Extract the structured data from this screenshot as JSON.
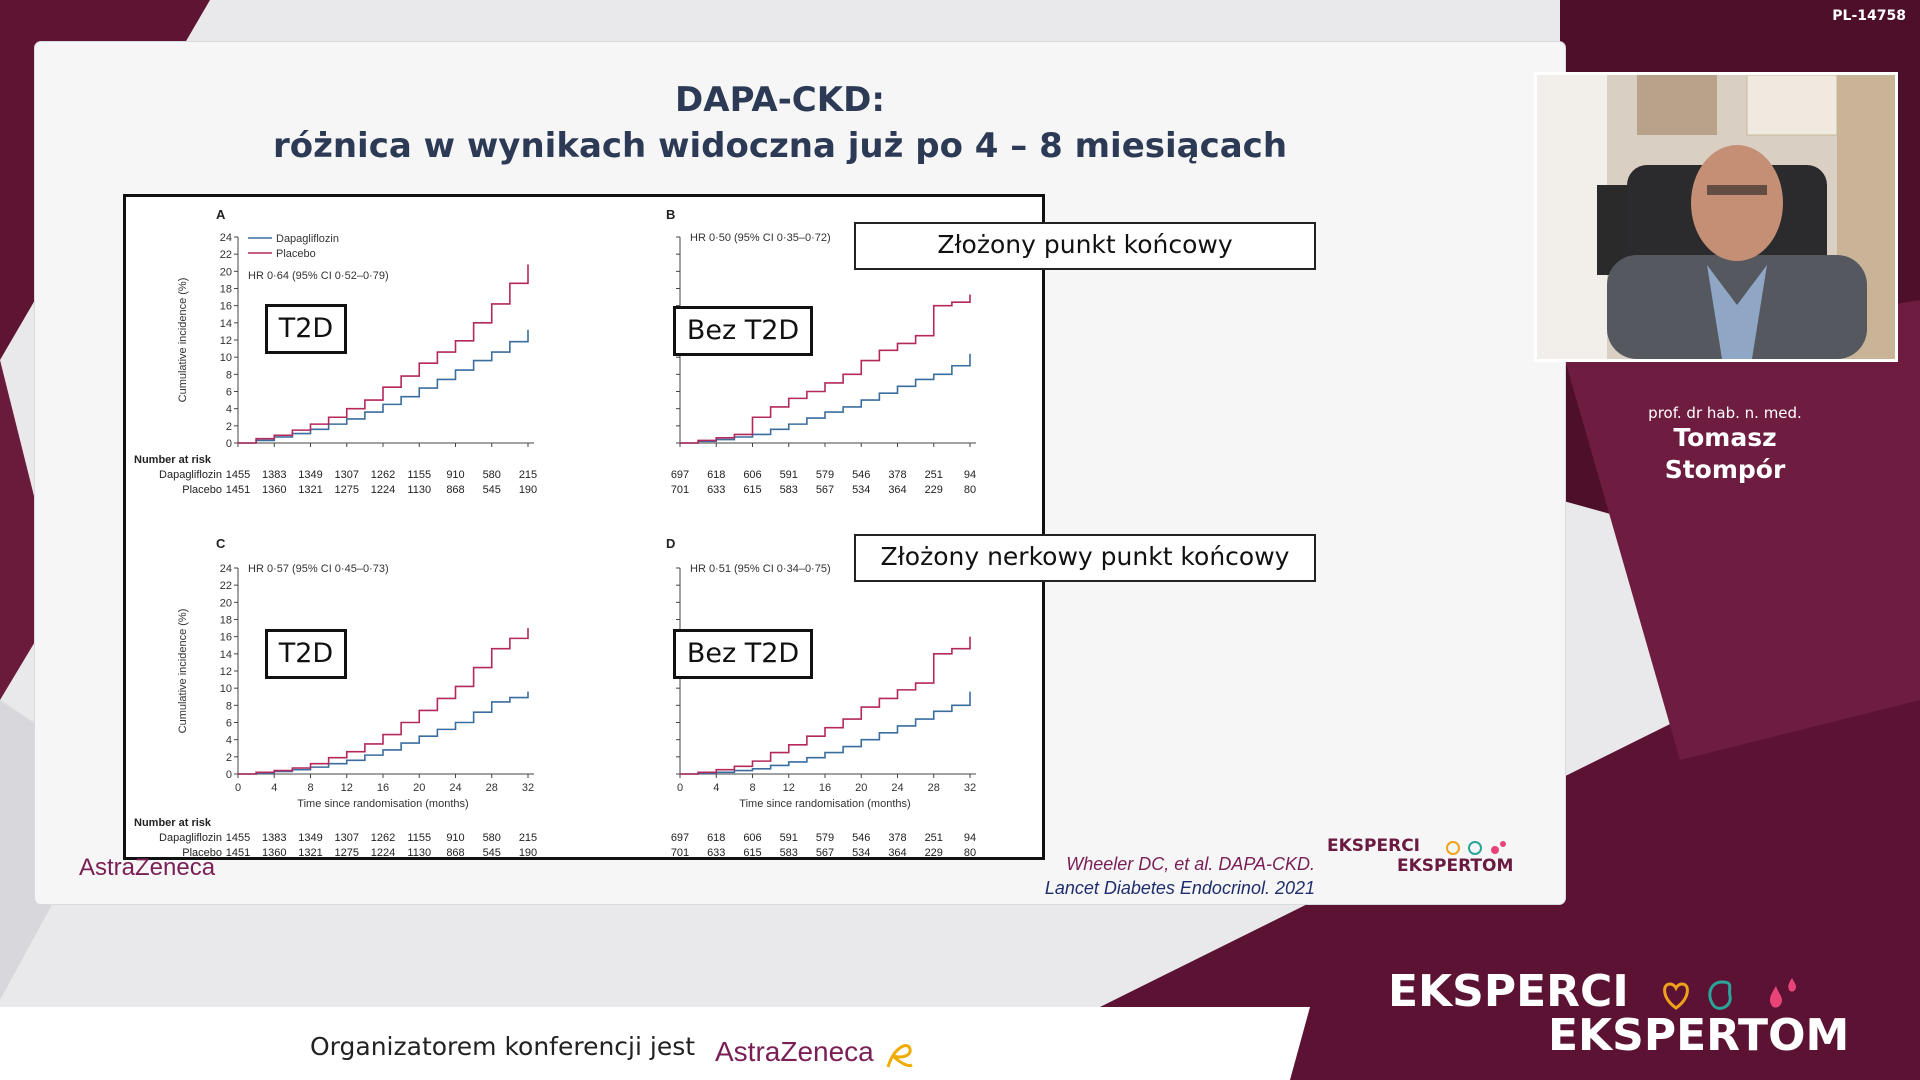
{
  "slide_code": "PL-14758",
  "title_line1": "DAPA-CKD:",
  "title_line2": "różnica w wynikach widoczna już po 4 – 8 miesiącach",
  "callouts": {
    "composite": "Złożony punkt końcowy",
    "renal": "Złożony nerkowy punkt końcowy"
  },
  "box_labels": {
    "a": "T2D",
    "b": "Bez T2D",
    "c": "T2D",
    "d": "Bez T2D"
  },
  "figure": {
    "legend": [
      "Dapagliflozin",
      "Placebo"
    ],
    "ylabel": "Cumulative incidence (%)",
    "xlabel": "Time since randomisation (months)",
    "number_at_risk": "Number at risk",
    "row_labels": [
      "Dapagliflozin",
      "Placebo"
    ],
    "x_ticks": [
      "0",
      "4",
      "8",
      "12",
      "16",
      "20",
      "24",
      "28",
      "32"
    ],
    "y_ticks": [
      "0",
      "2",
      "4",
      "6",
      "8",
      "10",
      "12",
      "14",
      "16",
      "18",
      "20",
      "22",
      "24"
    ],
    "risk_t2d": {
      "dapagliflozin": [
        "1455",
        "1383",
        "1349",
        "1307",
        "1262",
        "1155",
        "910",
        "580",
        "215"
      ],
      "placebo": [
        "1451",
        "1360",
        "1321",
        "1275",
        "1224",
        "1130",
        "868",
        "545",
        "190"
      ]
    },
    "risk_no_t2d": {
      "dapagliflozin": [
        "697",
        "618",
        "606",
        "591",
        "579",
        "546",
        "378",
        "251",
        "94"
      ],
      "placebo": [
        "701",
        "633",
        "615",
        "583",
        "567",
        "534",
        "364",
        "229",
        "80"
      ]
    },
    "panels": [
      {
        "letter": "A",
        "hr": "HR 0·64 (95% CI 0·52–0·79)"
      },
      {
        "letter": "B",
        "hr": "HR 0·50 (95% CI 0·35–0·72)"
      },
      {
        "letter": "C",
        "hr": "HR 0·57 (95% CI 0·45–0·73)"
      },
      {
        "letter": "D",
        "hr": "HR 0·51 (95% CI 0·34–0·75)"
      }
    ],
    "ghost_logo": "AstraZeneca"
  },
  "chart_data": [
    {
      "type": "line",
      "panel": "A",
      "ylim": [
        0,
        24
      ],
      "xlim": [
        0,
        32
      ],
      "series": [
        {
          "name": "Dapagliflozin",
          "x": [
            0,
            2,
            4,
            6,
            8,
            10,
            12,
            14,
            16,
            18,
            20,
            22,
            24,
            26,
            28,
            30,
            32
          ],
          "y": [
            0,
            0.3,
            0.7,
            1.1,
            1.6,
            2.2,
            2.8,
            3.6,
            4.5,
            5.4,
            6.4,
            7.4,
            8.5,
            9.6,
            10.6,
            11.8,
            13.2
          ]
        },
        {
          "name": "Placebo",
          "x": [
            0,
            2,
            4,
            6,
            8,
            10,
            12,
            14,
            16,
            18,
            20,
            22,
            24,
            26,
            28,
            30,
            32
          ],
          "y": [
            0,
            0.5,
            0.9,
            1.5,
            2.2,
            3.0,
            4.0,
            5.0,
            6.5,
            7.8,
            9.3,
            10.6,
            11.9,
            14.0,
            16.2,
            18.6,
            20.8
          ]
        }
      ]
    },
    {
      "type": "line",
      "panel": "B",
      "ylim": [
        0,
        24
      ],
      "xlim": [
        0,
        32
      ],
      "series": [
        {
          "name": "Dapagliflozin",
          "x": [
            0,
            2,
            4,
            6,
            8,
            10,
            12,
            14,
            16,
            18,
            20,
            22,
            24,
            26,
            28,
            30,
            32
          ],
          "y": [
            0,
            0.2,
            0.4,
            0.7,
            1.0,
            1.6,
            2.2,
            2.9,
            3.6,
            4.2,
            5.0,
            5.8,
            6.6,
            7.4,
            8.0,
            9.0,
            10.4
          ]
        },
        {
          "name": "Placebo",
          "x": [
            0,
            2,
            4,
            6,
            8,
            10,
            12,
            14,
            16,
            18,
            20,
            22,
            24,
            26,
            28,
            30,
            32
          ],
          "y": [
            0,
            0.3,
            0.6,
            1.0,
            3.0,
            4.2,
            5.2,
            6.0,
            7.0,
            8.0,
            9.6,
            10.8,
            11.6,
            12.5,
            16.0,
            16.4,
            17.3
          ]
        }
      ]
    },
    {
      "type": "line",
      "panel": "C",
      "ylim": [
        0,
        24
      ],
      "xlim": [
        0,
        32
      ],
      "series": [
        {
          "name": "Dapagliflozin",
          "x": [
            0,
            2,
            4,
            6,
            8,
            10,
            12,
            14,
            16,
            18,
            20,
            22,
            24,
            26,
            28,
            30,
            32
          ],
          "y": [
            0,
            0.1,
            0.3,
            0.5,
            0.8,
            1.2,
            1.6,
            2.2,
            2.8,
            3.6,
            4.4,
            5.2,
            6.0,
            7.2,
            8.4,
            8.9,
            9.6
          ]
        },
        {
          "name": "Placebo",
          "x": [
            0,
            2,
            4,
            6,
            8,
            10,
            12,
            14,
            16,
            18,
            20,
            22,
            24,
            26,
            28,
            30,
            32
          ],
          "y": [
            0,
            0.2,
            0.4,
            0.7,
            1.2,
            1.9,
            2.6,
            3.5,
            4.6,
            6.0,
            7.4,
            8.8,
            10.2,
            12.4,
            14.6,
            15.8,
            17.0
          ]
        }
      ]
    },
    {
      "type": "line",
      "panel": "D",
      "ylim": [
        0,
        24
      ],
      "xlim": [
        0,
        32
      ],
      "series": [
        {
          "name": "Dapagliflozin",
          "x": [
            0,
            2,
            4,
            6,
            8,
            10,
            12,
            14,
            16,
            18,
            20,
            22,
            24,
            26,
            28,
            30,
            32
          ],
          "y": [
            0,
            0.1,
            0.2,
            0.4,
            0.6,
            1.0,
            1.4,
            1.9,
            2.5,
            3.2,
            4.0,
            4.8,
            5.6,
            6.4,
            7.3,
            8.0,
            9.6
          ]
        },
        {
          "name": "Placebo",
          "x": [
            0,
            2,
            4,
            6,
            8,
            10,
            12,
            14,
            16,
            18,
            20,
            22,
            24,
            26,
            28,
            30,
            32
          ],
          "y": [
            0,
            0.2,
            0.5,
            0.9,
            1.5,
            2.5,
            3.4,
            4.4,
            5.4,
            6.4,
            7.8,
            8.8,
            9.8,
            10.6,
            14.0,
            14.6,
            16.0
          ]
        }
      ]
    }
  ],
  "citation_line1": "Wheeler DC, et al. DAPA-CKD.",
  "citation_line2": "Lancet Diabetes Endocrinol. 2021",
  "brand_small_line1": "EKSPERCI",
  "brand_small_line2": "EKSPERTOM",
  "speaker": {
    "title": "prof. dr hab. n. med.",
    "first_name": "Tomasz",
    "last_name": "Stompór"
  },
  "footer": {
    "organizer_text": "Organizatorem konferencji jest",
    "organizer_brand": "AstraZeneca"
  },
  "brand_big_line1": "EKSPERCI",
  "brand_big_line2": "EKSPERTOM",
  "colors": {
    "brand_maroon": "#5b1233",
    "dapagliflozin_line": "#3a6e9e",
    "placebo_line": "#b4285c",
    "title_navy": "#2c3a55"
  }
}
